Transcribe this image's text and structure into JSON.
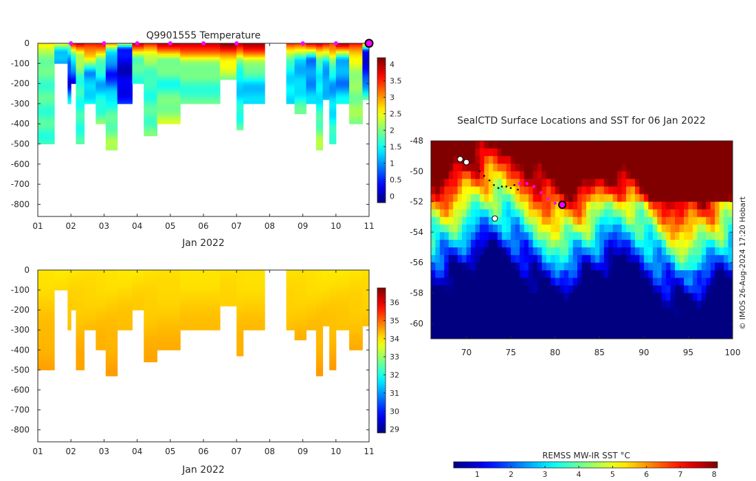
{
  "chart_data": [
    {
      "type": "heatmap",
      "title": "Q9901555  Temperature",
      "xlabel": "Jan 2022",
      "x_tick_labels": [
        "01",
        "02",
        "03",
        "04",
        "05",
        "06",
        "07",
        "08",
        "09",
        "10",
        "11"
      ],
      "xlim": [
        1,
        11
      ],
      "ylim": [
        -860,
        0
      ],
      "y_ticks": [
        0,
        -100,
        -200,
        -300,
        -400,
        -500,
        -600,
        -700,
        -800
      ],
      "colorbar": {
        "range": [
          -0.2,
          4.2
        ],
        "ticks": [
          0,
          0.5,
          1,
          1.5,
          2,
          2.5,
          3,
          3.5,
          4
        ],
        "tick_labels": [
          "0",
          "0.5",
          "1",
          "1.5",
          "2",
          "2.5",
          "3",
          "3.5",
          "4"
        ]
      },
      "profile_markers_x": [
        2,
        3,
        4,
        5,
        6,
        7,
        9,
        10
      ],
      "current_profile_x": 11,
      "profiles": [
        {
          "x0": 1.0,
          "x1": 1.5,
          "depth": 500,
          "stops": [
            [
              0,
              2.6
            ],
            [
              30,
              2.2
            ],
            [
              150,
              1.8
            ],
            [
              500,
              1.7
            ]
          ]
        },
        {
          "x0": 1.5,
          "x1": 1.9,
          "depth": 100,
          "stops": [
            [
              0,
              2.7
            ],
            [
              40,
              1.2
            ],
            [
              100,
              1.0
            ]
          ]
        },
        {
          "x0": 1.9,
          "x1": 2.0,
          "depth": 300,
          "stops": [
            [
              0,
              2.0
            ],
            [
              100,
              0.8
            ],
            [
              200,
              0.2
            ],
            [
              300,
              1.5
            ]
          ]
        },
        {
          "x0": 2.0,
          "x1": 2.15,
          "depth": 200,
          "stops": [
            [
              0,
              3.5
            ],
            [
              50,
              2.0
            ],
            [
              120,
              1.0
            ],
            [
              200,
              0.3
            ]
          ]
        },
        {
          "x0": 2.15,
          "x1": 2.4,
          "depth": 500,
          "stops": [
            [
              0,
              3.8
            ],
            [
              60,
              2.3
            ],
            [
              200,
              1.6
            ],
            [
              500,
              1.7
            ]
          ]
        },
        {
          "x0": 2.4,
          "x1": 2.75,
          "depth": 300,
          "stops": [
            [
              0,
              3.7
            ],
            [
              70,
              2.6
            ],
            [
              150,
              1.0
            ],
            [
              300,
              1.5
            ]
          ]
        },
        {
          "x0": 2.75,
          "x1": 3.05,
          "depth": 400,
          "stops": [
            [
              0,
              3.6
            ],
            [
              80,
              2.0
            ],
            [
              200,
              1.1
            ],
            [
              400,
              2.0
            ]
          ]
        },
        {
          "x0": 3.05,
          "x1": 3.4,
          "depth": 530,
          "stops": [
            [
              0,
              3.0
            ],
            [
              40,
              1.5
            ],
            [
              150,
              0.4
            ],
            [
              300,
              1.6
            ],
            [
              530,
              2.2
            ]
          ]
        },
        {
          "x0": 3.4,
          "x1": 3.85,
          "depth": 300,
          "stops": [
            [
              0,
              2.5
            ],
            [
              30,
              0.4
            ],
            [
              150,
              0.1
            ],
            [
              300,
              0.5
            ]
          ]
        },
        {
          "x0": 3.85,
          "x1": 4.2,
          "depth": 200,
          "stops": [
            [
              0,
              3.8
            ],
            [
              80,
              1.8
            ],
            [
              200,
              1.7
            ]
          ]
        },
        {
          "x0": 4.2,
          "x1": 4.6,
          "depth": 460,
          "stops": [
            [
              0,
              3.7
            ],
            [
              60,
              2.2
            ],
            [
              200,
              1.6
            ],
            [
              460,
              1.9
            ]
          ]
        },
        {
          "x0": 4.6,
          "x1": 5.3,
          "depth": 400,
          "stops": [
            [
              0,
              3.9
            ],
            [
              80,
              2.1
            ],
            [
              200,
              1.6
            ],
            [
              400,
              2.3
            ]
          ]
        },
        {
          "x0": 5.3,
          "x1": 6.5,
          "depth": 300,
          "stops": [
            [
              0,
              4.0
            ],
            [
              90,
              2.2
            ],
            [
              200,
              1.7
            ],
            [
              300,
              1.8
            ]
          ]
        },
        {
          "x0": 6.5,
          "x1": 7.0,
          "depth": 180,
          "stops": [
            [
              0,
              4.1
            ],
            [
              90,
              2.6
            ],
            [
              180,
              2.0
            ]
          ]
        },
        {
          "x0": 7.0,
          "x1": 7.2,
          "depth": 430,
          "stops": [
            [
              0,
              4.1
            ],
            [
              80,
              2.0
            ],
            [
              200,
              1.2
            ],
            [
              430,
              1.8
            ]
          ]
        },
        {
          "x0": 7.2,
          "x1": 7.85,
          "depth": 300,
          "stops": [
            [
              0,
              4.1
            ],
            [
              90,
              2.3
            ],
            [
              200,
              1.3
            ],
            [
              300,
              1.2
            ]
          ]
        },
        {
          "x0": 8.5,
          "x1": 8.75,
          "depth": 300,
          "stops": [
            [
              0,
              3.5
            ],
            [
              90,
              1.6
            ],
            [
              200,
              1.3
            ],
            [
              300,
              1.4
            ]
          ]
        },
        {
          "x0": 8.75,
          "x1": 9.1,
          "depth": 350,
          "stops": [
            [
              0,
              3.6
            ],
            [
              80,
              1.2
            ],
            [
              200,
              1.2
            ],
            [
              350,
              1.9
            ]
          ]
        },
        {
          "x0": 9.1,
          "x1": 9.4,
          "depth": 300,
          "stops": [
            [
              0,
              3.7
            ],
            [
              80,
              0.9
            ],
            [
              200,
              1.0
            ],
            [
              300,
              1.3
            ]
          ]
        },
        {
          "x0": 9.4,
          "x1": 9.6,
          "depth": 530,
          "stops": [
            [
              0,
              3.9
            ],
            [
              90,
              1.6
            ],
            [
              250,
              1.3
            ],
            [
              530,
              2.3
            ]
          ]
        },
        {
          "x0": 9.6,
          "x1": 9.8,
          "depth": 280,
          "stops": [
            [
              0,
              3.8
            ],
            [
              90,
              1.2
            ],
            [
              200,
              1.0
            ],
            [
              280,
              1.3
            ]
          ]
        },
        {
          "x0": 9.8,
          "x1": 10.0,
          "depth": 500,
          "stops": [
            [
              0,
              3.4
            ],
            [
              80,
              2.2
            ],
            [
              200,
              1.0
            ],
            [
              500,
              1.8
            ]
          ]
        },
        {
          "x0": 10.0,
          "x1": 10.4,
          "depth": 300,
          "stops": [
            [
              0,
              4.0
            ],
            [
              80,
              1.2
            ],
            [
              200,
              0.9
            ],
            [
              300,
              1.5
            ]
          ]
        },
        {
          "x0": 10.4,
          "x1": 10.8,
          "depth": 400,
          "stops": [
            [
              0,
              3.7
            ],
            [
              70,
              2.5
            ],
            [
              200,
              2.0
            ],
            [
              400,
              2.1
            ]
          ]
        },
        {
          "x0": 10.8,
          "x1": 11.0,
          "depth": 280,
          "stops": [
            [
              0,
              3.0
            ],
            [
              40,
              0.2
            ],
            [
              150,
              0.4
            ],
            [
              280,
              1.8
            ]
          ]
        }
      ]
    },
    {
      "type": "heatmap",
      "title": "",
      "xlabel": "Jan 2022",
      "x_tick_labels": [
        "01",
        "02",
        "03",
        "04",
        "05",
        "06",
        "07",
        "08",
        "09",
        "10",
        "11"
      ],
      "xlim": [
        1,
        11
      ],
      "ylim": [
        -860,
        0
      ],
      "y_ticks": [
        0,
        -100,
        -200,
        -300,
        -400,
        -500,
        -600,
        -700,
        -800
      ],
      "colorbar": {
        "range": [
          28.8,
          36.8
        ],
        "ticks": [
          29,
          30,
          31,
          32,
          33,
          34,
          35,
          36
        ],
        "tick_labels": [
          "29",
          "30",
          "31",
          "32",
          "33",
          "34",
          "35",
          "36"
        ]
      },
      "note": "Salinity shown on same profile depths as temperature panel",
      "value_model": "34.0 near surface rising to about 34.5 at depth"
    },
    {
      "type": "heatmap",
      "title": "SealCTD Surface Locations and SST for 06 Jan 2022",
      "xlim": [
        66,
        100
      ],
      "ylim": [
        -61,
        -48
      ],
      "x_ticks": [
        70,
        75,
        80,
        85,
        90,
        95,
        100
      ],
      "x_tick_labels": [
        "70",
        "75",
        "80",
        "85",
        "90",
        "95",
        "100"
      ],
      "y_ticks": [
        -48,
        -50,
        -52,
        -54,
        -56,
        -58,
        -60
      ],
      "y_tick_labels": [
        "-48",
        "-50",
        "-52",
        "-54",
        "-56",
        "-58",
        "-60"
      ],
      "credit": "© IMOS 26-Aug-2024 17:20 Hobart",
      "colorbar": {
        "label": "REMSS MW-IR SST °C",
        "range": [
          0.3,
          8.1
        ],
        "ticks": [
          1,
          2,
          3,
          4,
          5,
          6,
          7,
          8
        ],
        "tick_labels": [
          "1",
          "2",
          "3",
          "4",
          "5",
          "6",
          "7",
          "8"
        ]
      },
      "track_black": [
        [
          71.5,
          -50.0
        ],
        [
          72.0,
          -50.3
        ],
        [
          72.6,
          -50.6
        ],
        [
          73.1,
          -50.9
        ],
        [
          73.6,
          -51.1
        ],
        [
          74.0,
          -51.0
        ],
        [
          74.5,
          -51.0
        ],
        [
          75.0,
          -51.1
        ],
        [
          75.4,
          -50.9
        ],
        [
          75.8,
          -51.2
        ]
      ],
      "track_magenta": [
        [
          76.0,
          -50.8
        ],
        [
          76.8,
          -50.8
        ],
        [
          77.6,
          -51.0
        ],
        [
          78.4,
          -51.4
        ],
        [
          79.2,
          -51.8
        ],
        [
          80.0,
          -52.1
        ],
        [
          80.7,
          -52.2
        ]
      ],
      "current_location": [
        80.8,
        -52.2
      ],
      "islands": [
        [
          69.3,
          -49.2
        ],
        [
          70.0,
          -49.4
        ],
        [
          73.2,
          -53.1
        ]
      ]
    }
  ]
}
